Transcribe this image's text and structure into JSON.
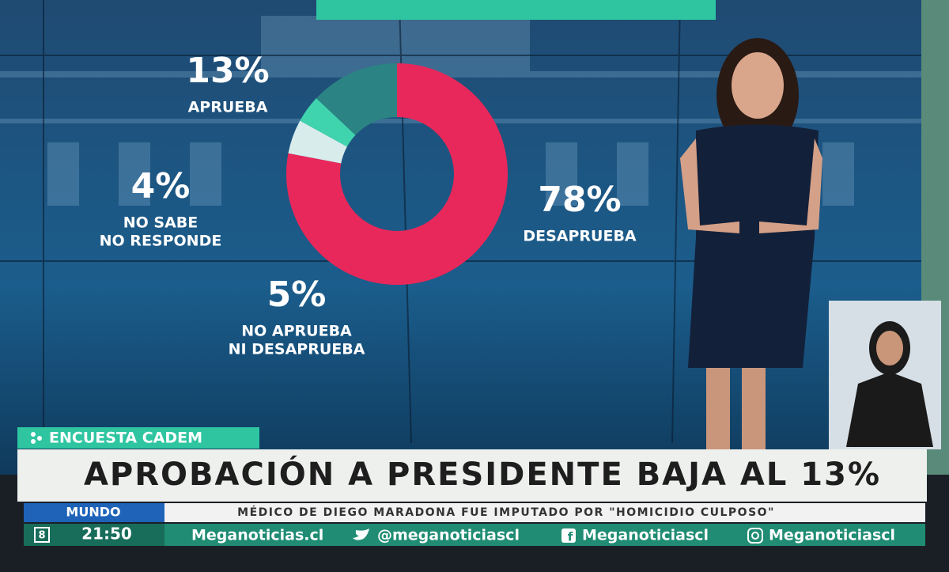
{
  "chart_data": {
    "type": "donut",
    "categories": [
      [
        "DESAPRUEBA"
      ],
      [
        "NO APRUEBA",
        "NI DESAPRUEBA"
      ],
      [
        "NO SABE",
        "NO RESPONDE"
      ],
      [
        "APRUEBA"
      ]
    ],
    "values": [
      78,
      5,
      4,
      13
    ],
    "value_labels": [
      "78%",
      "5%",
      "4%",
      "13%"
    ],
    "colors": [
      "#e8285a",
      "#d8ecec",
      "#3fd4ad",
      "#2b8383"
    ]
  },
  "banner": {
    "tag": "ENCUESTA CADEM",
    "headline": "APROBACIÓN A PRESIDENTE BAJA AL 13%"
  },
  "ticker": {
    "section": "MUNDO",
    "text": "MÉDICO DE DIEGO MARADONA FUE IMPUTADO POR \"HOMICIDIO CULPOSO\""
  },
  "footer": {
    "channel": "8",
    "time": "21:50",
    "links": [
      "Meganoticias.cl",
      "@meganoticiascl",
      "Meganoticiascl",
      "Meganoticiascl"
    ]
  }
}
